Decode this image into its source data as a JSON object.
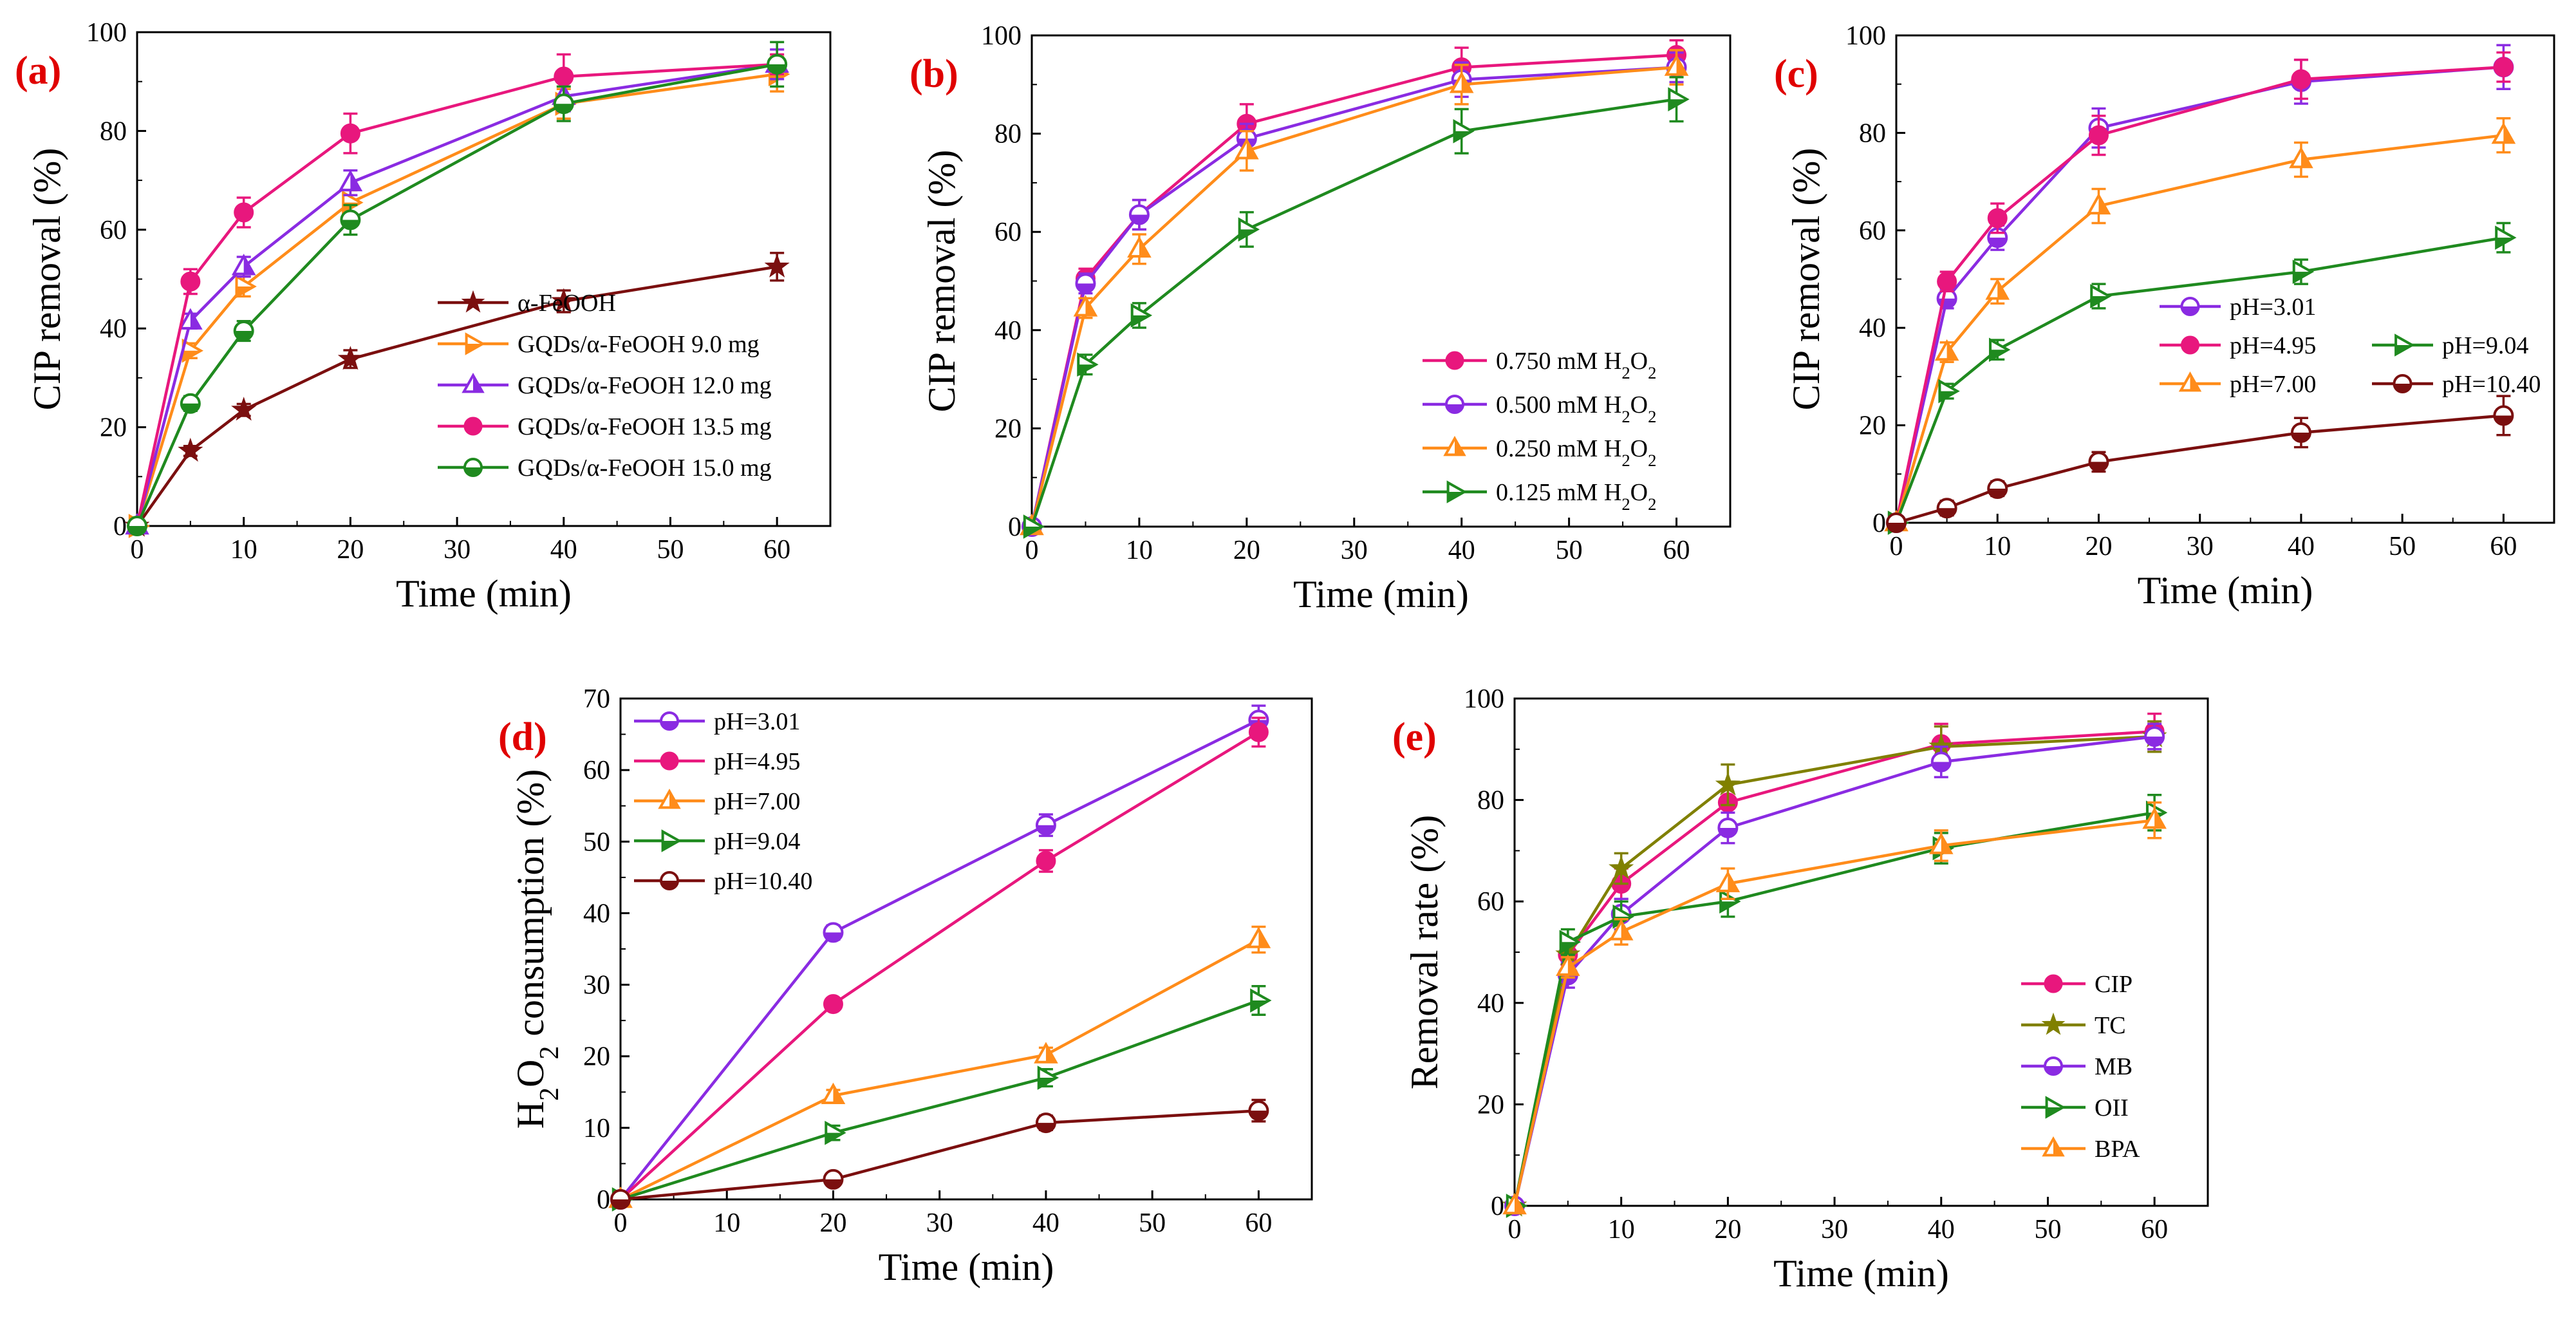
{
  "figure": {
    "background": "#ffffff"
  },
  "chart_data": [
    {
      "id": "a",
      "type": "line",
      "panel_label": "(a)",
      "xlabel": "Time (min)",
      "ylabel": "CIP removal (%)",
      "xlim": [
        0,
        65
      ],
      "ylim": [
        0,
        100
      ],
      "xticks": [
        0,
        10,
        20,
        30,
        40,
        50,
        60
      ],
      "yticks": [
        0,
        20,
        40,
        60,
        80,
        100
      ],
      "x": [
        0,
        5,
        10,
        20,
        40,
        60
      ],
      "legend_position": "bottom-right",
      "series": [
        {
          "name": "α-FeOOH",
          "color": "#7b0f0f",
          "marker": "star",
          "values": [
            0,
            15.2,
            23.5,
            33.8,
            45.5,
            52.5
          ],
          "errors": [
            0,
            1,
            1.2,
            1.8,
            2.2,
            2.8
          ]
        },
        {
          "name": "GQDs/α-FeOOH  9.0 mg",
          "color": "#ff8c1a",
          "marker": "tri-right",
          "values": [
            0,
            35.5,
            48.5,
            65.5,
            85.5,
            91.5
          ],
          "errors": [
            0,
            1.5,
            2,
            2.5,
            3,
            3.5
          ]
        },
        {
          "name": "GQDs/α-FeOOH 12.0 mg",
          "color": "#8a2be2",
          "marker": "tri-up",
          "values": [
            0,
            41.5,
            52.5,
            69.5,
            87,
            93.5
          ],
          "errors": [
            0,
            1.5,
            2,
            2.5,
            3,
            3
          ]
        },
        {
          "name": "GQDs/α-FeOOH 13.5 mg",
          "color": "#e8177d",
          "marker": "circle",
          "values": [
            0,
            49.5,
            63.5,
            79.5,
            91,
            93.5
          ],
          "errors": [
            0,
            2.5,
            3,
            4,
            4.5,
            2
          ]
        },
        {
          "name": "GQDs/α-FeOOH 15.0 mg",
          "color": "#1f8a1f",
          "marker": "half-circle",
          "values": [
            0,
            24.8,
            39.5,
            62,
            85.5,
            93.5
          ],
          "errors": [
            0,
            1.5,
            2,
            3,
            3.5,
            4.5
          ]
        }
      ]
    },
    {
      "id": "b",
      "type": "line",
      "panel_label": "(b)",
      "xlabel": "Time (min)",
      "ylabel": "CIP removal (%)",
      "xlim": [
        0,
        65
      ],
      "ylim": [
        0,
        100
      ],
      "xticks": [
        0,
        10,
        20,
        30,
        40,
        50,
        60
      ],
      "yticks": [
        0,
        20,
        40,
        60,
        80,
        100
      ],
      "x": [
        0,
        5,
        10,
        20,
        40,
        60
      ],
      "legend_position": "bottom-right",
      "series": [
        {
          "name": "0.750 mM H2O2",
          "color": "#e8177d",
          "marker": "circle",
          "values": [
            0,
            50.5,
            63.5,
            82,
            93.5,
            96
          ],
          "errors": [
            0,
            2,
            3,
            4,
            4,
            3
          ]
        },
        {
          "name": "0.500 mM H2O2",
          "color": "#8a2be2",
          "marker": "half-circle",
          "values": [
            0,
            49.5,
            63.5,
            79,
            91,
            93.5
          ],
          "errors": [
            0,
            2,
            3,
            3,
            3.5,
            3
          ]
        },
        {
          "name": "0.250 mM H2O2",
          "color": "#ff8c1a",
          "marker": "tri-up",
          "values": [
            0,
            44.5,
            56.5,
            76.5,
            90,
            93.5
          ],
          "errors": [
            0,
            2,
            3,
            4,
            4,
            3.5
          ]
        },
        {
          "name": "0.125 mM H2O2",
          "color": "#1f8a1f",
          "marker": "tri-right",
          "values": [
            0,
            33,
            43,
            60.5,
            80.5,
            87
          ],
          "errors": [
            0,
            2,
            2.5,
            3.5,
            4.5,
            4.5
          ]
        }
      ]
    },
    {
      "id": "c",
      "type": "line",
      "panel_label": "(c)",
      "xlabel": "Time (min)",
      "ylabel": "CIP removal (%)",
      "xlim": [
        0,
        65
      ],
      "ylim": [
        0,
        100
      ],
      "xticks": [
        0,
        10,
        20,
        30,
        40,
        50,
        60
      ],
      "yticks": [
        0,
        20,
        40,
        60,
        80,
        100
      ],
      "x": [
        0,
        5,
        10,
        20,
        40,
        60
      ],
      "legend_position": "center-left",
      "series": [
        {
          "name": "pH=3.01",
          "color": "#8a2be2",
          "marker": "half-circle",
          "values": [
            0,
            46,
            58.5,
            81,
            90.5,
            93.5
          ],
          "errors": [
            0,
            2,
            2.5,
            4,
            4.5,
            4.5
          ]
        },
        {
          "name": "pH=4.95",
          "color": "#e8177d",
          "marker": "circle",
          "values": [
            0,
            49.5,
            62.5,
            79.5,
            91,
            93.5
          ],
          "errors": [
            0,
            2,
            3,
            4,
            4,
            3
          ]
        },
        {
          "name": "pH=7.00",
          "color": "#ff8c1a",
          "marker": "tri-up",
          "values": [
            0,
            35,
            47.5,
            65,
            74.5,
            79.5
          ],
          "errors": [
            0,
            2,
            2.5,
            3.5,
            3.5,
            3.5
          ]
        },
        {
          "name": "pH=9.04",
          "color": "#1f8a1f",
          "marker": "tri-right",
          "values": [
            0,
            27,
            35.5,
            46.5,
            51.5,
            58.5
          ],
          "errors": [
            0,
            1.5,
            2,
            2.5,
            2.5,
            3
          ]
        },
        {
          "name": "pH=10.40",
          "color": "#7b0f0f",
          "marker": "half-circle",
          "values": [
            0,
            3,
            7,
            12.5,
            18.5,
            22
          ],
          "errors": [
            0,
            1.5,
            1.5,
            2,
            3,
            4
          ]
        }
      ]
    },
    {
      "id": "d",
      "type": "line",
      "panel_label": "(d)",
      "xlabel": "Time (min)",
      "ylabel": "H2O2 consumption (%)",
      "xlim": [
        0,
        65
      ],
      "ylim": [
        0,
        70
      ],
      "xticks": [
        0,
        10,
        20,
        30,
        40,
        50,
        60
      ],
      "yticks": [
        0,
        10,
        20,
        30,
        40,
        50,
        60,
        70
      ],
      "x": [
        0,
        20,
        40,
        60
      ],
      "legend_position": "top-left",
      "series": [
        {
          "name": "pH=3.01",
          "color": "#8a2be2",
          "marker": "half-circle",
          "values": [
            0,
            37.3,
            52.3,
            67
          ],
          "errors": [
            0,
            1,
            1.5,
            2
          ]
        },
        {
          "name": "pH=4.95",
          "color": "#e8177d",
          "marker": "circle",
          "values": [
            0,
            27.3,
            47.3,
            65.3
          ],
          "errors": [
            0,
            0.8,
            1.5,
            2
          ]
        },
        {
          "name": "pH=7.00",
          "color": "#ff8c1a",
          "marker": "tri-up",
          "values": [
            0,
            14.5,
            20.2,
            36.3
          ],
          "errors": [
            0,
            0.8,
            1,
            1.8
          ]
        },
        {
          "name": "pH=9.04",
          "color": "#1f8a1f",
          "marker": "tri-right",
          "values": [
            0,
            9.3,
            17,
            27.8
          ],
          "errors": [
            0,
            1,
            1.2,
            2
          ]
        },
        {
          "name": "pH=10.40",
          "color": "#7b0f0f",
          "marker": "half-circle",
          "values": [
            0,
            2.8,
            10.7,
            12.4
          ],
          "errors": [
            0,
            0.5,
            1,
            1.5
          ]
        }
      ]
    },
    {
      "id": "e",
      "type": "line",
      "panel_label": "(e)",
      "xlabel": "Time (min)",
      "ylabel": "Removal rate (%)",
      "xlim": [
        0,
        65
      ],
      "ylim": [
        0,
        100
      ],
      "xticks": [
        0,
        10,
        20,
        30,
        40,
        50,
        60
      ],
      "yticks": [
        0,
        20,
        40,
        60,
        80,
        100
      ],
      "x": [
        0,
        5,
        10,
        20,
        40,
        60
      ],
      "legend_position": "bottom-right",
      "series": [
        {
          "name": "CIP",
          "color": "#e8177d",
          "marker": "circle",
          "values": [
            0,
            49.5,
            63.5,
            79.5,
            91,
            93.5
          ],
          "errors": [
            0,
            2,
            3,
            4,
            4,
            3.5
          ]
        },
        {
          "name": "TC",
          "color": "#808000",
          "marker": "star",
          "values": [
            0,
            49.5,
            66.5,
            83,
            90.5,
            92.5
          ],
          "errors": [
            0,
            3,
            3,
            4,
            4,
            3
          ]
        },
        {
          "name": "MB",
          "color": "#8a2be2",
          "marker": "half-circle",
          "values": [
            0,
            45.5,
            57.5,
            74.5,
            87.5,
            92.5
          ],
          "errors": [
            0,
            2.5,
            3,
            3,
            3,
            2.5
          ]
        },
        {
          "name": "OII",
          "color": "#1f8a1f",
          "marker": "tri-right",
          "values": [
            0,
            52,
            57,
            60,
            70.5,
            77.5
          ],
          "errors": [
            0,
            2.5,
            3,
            3,
            3,
            3.5
          ]
        },
        {
          "name": "BPA",
          "color": "#ff8c1a",
          "marker": "tri-up",
          "values": [
            0,
            47,
            54,
            63.5,
            71,
            76
          ],
          "errors": [
            0,
            2,
            2.5,
            3,
            3,
            3.5
          ]
        }
      ]
    }
  ]
}
